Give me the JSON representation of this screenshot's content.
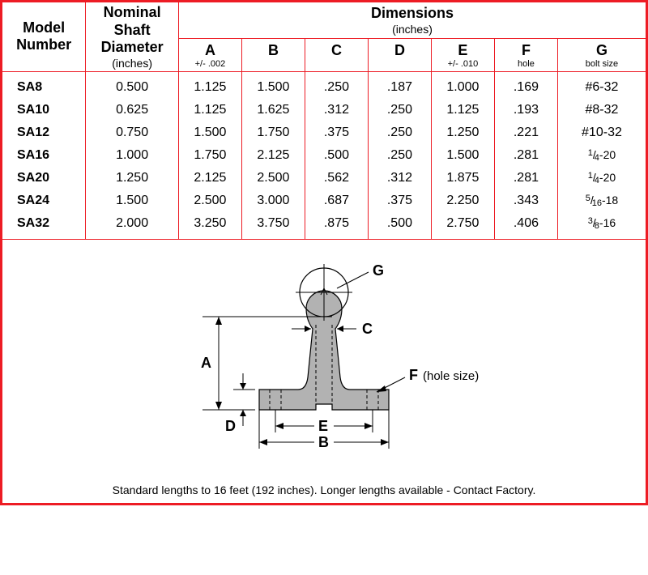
{
  "headers": {
    "model": "Model\nNumber",
    "shaft": "Nominal\nShaft\nDiameter",
    "shaft_unit": "(inches)",
    "dims": "Dimensions",
    "dims_unit": "(inches)",
    "cols": [
      {
        "letter": "A",
        "note": "+/- .002"
      },
      {
        "letter": "B",
        "note": ""
      },
      {
        "letter": "C",
        "note": ""
      },
      {
        "letter": "D",
        "note": ""
      },
      {
        "letter": "E",
        "note": "+/- .010"
      },
      {
        "letter": "F",
        "note": "hole"
      },
      {
        "letter": "G",
        "note": "bolt size"
      }
    ]
  },
  "rows": [
    {
      "model": "SA8",
      "shaft": "0.500",
      "A": "1.125",
      "B": "1.500",
      "C": ".250",
      "D": ".187",
      "E": "1.000",
      "F": ".169",
      "G": "#6-32",
      "Gfrac": false
    },
    {
      "model": "SA10",
      "shaft": "0.625",
      "A": "1.125",
      "B": "1.625",
      "C": ".312",
      "D": ".250",
      "E": "1.125",
      "F": ".193",
      "G": "#8-32",
      "Gfrac": false
    },
    {
      "model": "SA12",
      "shaft": "0.750",
      "A": "1.500",
      "B": "1.750",
      "C": ".375",
      "D": ".250",
      "E": "1.250",
      "F": ".221",
      "G": "#10-32",
      "Gfrac": false
    },
    {
      "model": "SA16",
      "shaft": "1.000",
      "A": "1.750",
      "B": "2.125",
      "C": ".500",
      "D": ".250",
      "E": "1.500",
      "F": ".281",
      "G": "1/4-20",
      "Gfrac": true,
      "num": "1",
      "den": "4",
      "suf": "-20"
    },
    {
      "model": "SA20",
      "shaft": "1.250",
      "A": "2.125",
      "B": "2.500",
      "C": ".562",
      "D": ".312",
      "E": "1.875",
      "F": ".281",
      "G": "1/4-20",
      "Gfrac": true,
      "num": "1",
      "den": "4",
      "suf": "-20"
    },
    {
      "model": "SA24",
      "shaft": "1.500",
      "A": "2.500",
      "B": "3.000",
      "C": ".687",
      "D": ".375",
      "E": "2.250",
      "F": ".343",
      "G": "5/16-18",
      "Gfrac": true,
      "num": "5",
      "den": "16",
      "suf": "-18"
    },
    {
      "model": "SA32",
      "shaft": "2.000",
      "A": "3.250",
      "B": "3.750",
      "C": ".875",
      "D": ".500",
      "E": "2.750",
      "F": ".406",
      "G": "3/8-16",
      "Gfrac": true,
      "num": "3",
      "den": "8",
      "suf": "-16"
    }
  ],
  "diagram": {
    "labels": {
      "A": "A",
      "B": "B",
      "C": "C",
      "D": "D",
      "E": "E",
      "F": "F",
      "G": "G",
      "hole": "(hole size)"
    },
    "colors": {
      "fill": "#b2b2b2",
      "stroke": "#000000",
      "dash": "#000000"
    }
  },
  "footnote": "Standard lengths to 16 feet (192 inches).  Longer lengths available - Contact Factory."
}
